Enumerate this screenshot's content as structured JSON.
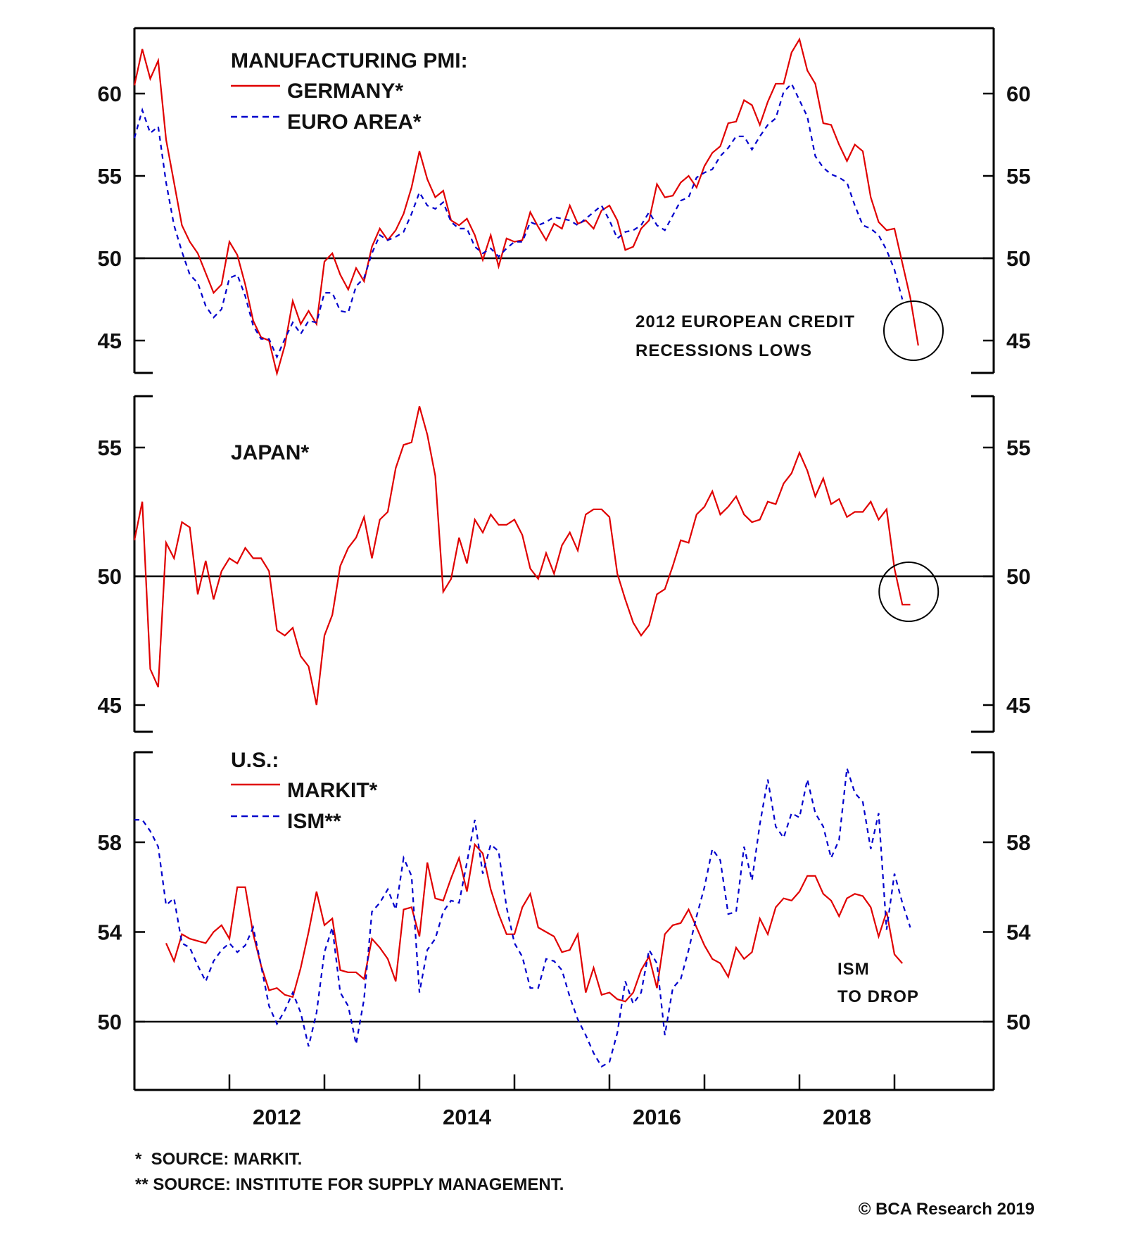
{
  "chart_data": [
    {
      "type": "line",
      "panel": "top",
      "title": "MANUFACTURING PMI:",
      "ylim": [
        43,
        64
      ],
      "yticks": [
        45,
        50,
        55,
        60
      ],
      "reference_line": 50,
      "x_start": 2011.0,
      "x_step_months": 1,
      "series": [
        {
          "name": "GERMANY*",
          "color": "#e00000",
          "style": "solid",
          "values": [
            60.5,
            62.7,
            60.9,
            62.0,
            57.2,
            54.6,
            52.0,
            51.0,
            50.3,
            49.1,
            47.9,
            48.4,
            51.0,
            50.2,
            48.4,
            46.2,
            45.2,
            45.0,
            43.0,
            44.7,
            47.4,
            46.0,
            46.8,
            46.0,
            49.8,
            50.3,
            49.0,
            48.1,
            49.4,
            48.6,
            50.7,
            51.8,
            51.1,
            51.7,
            52.7,
            54.3,
            56.5,
            54.8,
            53.7,
            54.1,
            52.3,
            52.0,
            52.4,
            51.4,
            49.9,
            51.4,
            49.5,
            51.2,
            51.0,
            51.1,
            52.8,
            51.9,
            51.1,
            52.1,
            51.8,
            53.2,
            52.1,
            52.3,
            51.8,
            52.9,
            53.2,
            52.3,
            50.5,
            50.7,
            51.8,
            52.3,
            54.5,
            53.7,
            53.8,
            54.6,
            55.0,
            54.3,
            55.6,
            56.4,
            56.8,
            58.2,
            58.3,
            59.6,
            59.3,
            58.1,
            59.5,
            60.6,
            60.6,
            62.5,
            63.3,
            61.4,
            60.6,
            58.2,
            58.1,
            56.9,
            55.9,
            56.9,
            56.5,
            53.7,
            52.2,
            51.7,
            51.8,
            49.7,
            47.6,
            44.7
          ]
        },
        {
          "name": "EURO AREA*",
          "color": "#0000cc",
          "style": "dashed",
          "values": [
            57.3,
            59.0,
            57.6,
            58.0,
            54.6,
            52.0,
            50.4,
            49.0,
            48.5,
            47.1,
            46.4,
            46.9,
            48.8,
            49.0,
            47.7,
            45.9,
            45.1,
            45.1,
            44.0,
            45.1,
            46.1,
            45.4,
            46.2,
            46.1,
            47.9,
            47.9,
            46.8,
            46.7,
            48.3,
            48.8,
            50.3,
            51.4,
            51.1,
            51.3,
            51.6,
            52.7,
            54.0,
            53.2,
            53.0,
            53.4,
            52.2,
            51.8,
            51.8,
            50.7,
            50.3,
            50.6,
            50.1,
            50.6,
            51.0,
            51.0,
            52.2,
            52.0,
            52.2,
            52.5,
            52.4,
            52.3,
            52.0,
            52.4,
            52.8,
            53.2,
            52.3,
            51.2,
            51.6,
            51.7,
            52.0,
            52.8,
            52.0,
            51.7,
            52.6,
            53.5,
            53.7,
            54.9,
            55.2,
            55.4,
            56.2,
            56.7,
            57.4,
            57.4,
            56.6,
            57.4,
            58.1,
            58.5,
            60.1,
            60.6,
            59.6,
            58.6,
            56.2,
            55.5,
            55.1,
            54.9,
            54.6,
            53.2,
            52.0,
            51.8,
            51.4,
            50.5,
            49.3,
            47.5
          ]
        }
      ],
      "annotations": [
        {
          "text_lines": [
            "2012 EUROPEAN CREDIT",
            "RECESSIONS LOWS"
          ],
          "circle_around": {
            "year": 2019.2,
            "value": 45.6
          }
        }
      ]
    },
    {
      "type": "line",
      "panel": "middle",
      "title": "JAPAN*",
      "ylim": [
        44.0,
        57.0
      ],
      "yticks": [
        45,
        50,
        55
      ],
      "reference_line": 50,
      "x_start": 2011.0,
      "x_step_months": 1,
      "series": [
        {
          "name": "JAPAN*",
          "color": "#e00000",
          "style": "solid",
          "values": [
            51.4,
            52.9,
            46.4,
            45.7,
            51.3,
            50.7,
            52.1,
            51.9,
            49.3,
            50.6,
            49.1,
            50.2,
            50.7,
            50.5,
            51.1,
            50.7,
            50.7,
            50.2,
            47.9,
            47.7,
            48.0,
            46.9,
            46.5,
            45.0,
            47.7,
            48.5,
            50.4,
            51.1,
            51.5,
            52.3,
            50.7,
            52.2,
            52.5,
            54.2,
            55.1,
            55.2,
            56.6,
            55.5,
            53.9,
            49.4,
            49.9,
            51.5,
            50.5,
            52.2,
            51.7,
            52.4,
            52.0,
            52.0,
            52.2,
            51.6,
            50.3,
            49.9,
            50.9,
            50.1,
            51.2,
            51.7,
            51.0,
            52.4,
            52.6,
            52.6,
            52.3,
            50.1,
            49.1,
            48.2,
            47.7,
            48.1,
            49.3,
            49.5,
            50.4,
            51.4,
            51.3,
            52.4,
            52.7,
            53.3,
            52.4,
            52.7,
            53.1,
            52.4,
            52.1,
            52.2,
            52.9,
            52.8,
            53.6,
            54.0,
            54.8,
            54.1,
            53.1,
            53.8,
            52.8,
            53.0,
            52.3,
            52.5,
            52.5,
            52.9,
            52.2,
            52.6,
            50.3,
            48.9,
            48.9
          ]
        }
      ],
      "annotations": [
        {
          "circle_around": {
            "year": 2019.15,
            "value": 49.4
          }
        }
      ]
    },
    {
      "type": "line",
      "panel": "bottom",
      "title": "U.S.:",
      "ylim": [
        47.0,
        62.0
      ],
      "yticks": [
        50,
        54,
        58
      ],
      "reference_line": 50,
      "x_start": 2011.0,
      "x_step_months": 1,
      "series": [
        {
          "name": "MARKIT*",
          "color": "#e00000",
          "style": "solid",
          "start_offset_months": 4,
          "values": [
            53.5,
            52.7,
            53.9,
            53.7,
            53.6,
            53.5,
            54.0,
            54.3,
            53.7,
            56.0,
            56.0,
            53.9,
            52.5,
            51.4,
            51.5,
            51.2,
            51.1,
            52.4,
            54.0,
            55.8,
            54.3,
            54.6,
            52.3,
            52.2,
            52.2,
            51.9,
            53.7,
            53.3,
            52.8,
            51.8,
            55.0,
            55.1,
            53.8,
            57.1,
            55.5,
            55.4,
            56.4,
            57.3,
            55.8,
            57.9,
            57.5,
            55.9,
            54.8,
            53.9,
            53.9,
            55.1,
            55.7,
            54.2,
            54.0,
            53.8,
            53.1,
            53.2,
            53.9,
            51.3,
            52.4,
            51.2,
            51.3,
            51.0,
            50.9,
            51.3,
            52.3,
            52.9,
            51.5,
            53.9,
            54.3,
            54.4,
            55.0,
            54.2,
            53.4,
            52.8,
            52.6,
            52.0,
            53.3,
            52.8,
            53.1,
            54.6,
            53.9,
            55.1,
            55.5,
            55.4,
            55.8,
            56.5,
            56.5,
            55.7,
            55.4,
            54.7,
            55.5,
            55.7,
            55.6,
            55.1,
            53.8,
            54.9,
            53.0,
            52.6
          ]
        },
        {
          "name": "ISM**",
          "color": "#0000cc",
          "style": "dashed",
          "values": [
            59.0,
            59.0,
            58.5,
            57.8,
            55.2,
            55.5,
            53.5,
            53.3,
            52.5,
            51.8,
            52.7,
            53.2,
            53.5,
            53.1,
            53.4,
            54.2,
            52.5,
            50.7,
            49.9,
            50.5,
            51.3,
            50.4,
            48.9,
            50.4,
            53.1,
            54.2,
            51.3,
            50.7,
            49.0,
            51.0,
            54.9,
            55.3,
            55.9,
            55.0,
            57.3,
            56.5,
            51.3,
            53.2,
            53.7,
            54.9,
            55.4,
            55.3,
            57.1,
            59.0,
            56.6,
            57.9,
            57.6,
            55.1,
            53.5,
            52.9,
            51.5,
            51.5,
            52.8,
            52.7,
            52.3,
            51.1,
            50.1,
            49.4,
            48.6,
            48.0,
            48.2,
            49.5,
            51.8,
            50.8,
            51.3,
            53.2,
            52.6,
            49.4,
            51.5,
            51.9,
            53.2,
            54.7,
            56.0,
            57.7,
            57.2,
            54.8,
            54.9,
            57.8,
            56.3,
            58.8,
            60.8,
            58.7,
            58.2,
            59.3,
            59.1,
            60.8,
            59.3,
            58.7,
            57.3,
            58.1,
            61.3,
            60.2,
            59.8,
            57.7,
            59.3,
            54.1,
            56.6,
            55.3,
            54.2
          ]
        }
      ],
      "annotations": [
        {
          "text_lines": [
            "ISM",
            "TO DROP"
          ]
        }
      ]
    }
  ],
  "legend": {
    "top": {
      "title": "MANUFACTURING PMI:",
      "items": [
        "GERMANY*",
        "EURO AREA*"
      ]
    },
    "middle": {
      "title": "JAPAN*"
    },
    "bottom": {
      "title": "U.S.:",
      "items": [
        "MARKIT*",
        "ISM**"
      ]
    }
  },
  "x_axis": {
    "tick_years": [
      2012,
      2013,
      2014,
      2015,
      2016,
      2017,
      2018,
      2019
    ],
    "labels": [
      "2012",
      "2014",
      "2016",
      "2018"
    ],
    "range": [
      2011.0,
      2020.0
    ]
  },
  "footnotes": [
    "*  SOURCE: MARKIT.",
    "** SOURCE: INSTITUTE FOR SUPPLY MANAGEMENT."
  ],
  "copyright": "© BCA Research 2019",
  "colors": {
    "red": "#e00000",
    "blue": "#0000cc",
    "black": "#000000"
  }
}
